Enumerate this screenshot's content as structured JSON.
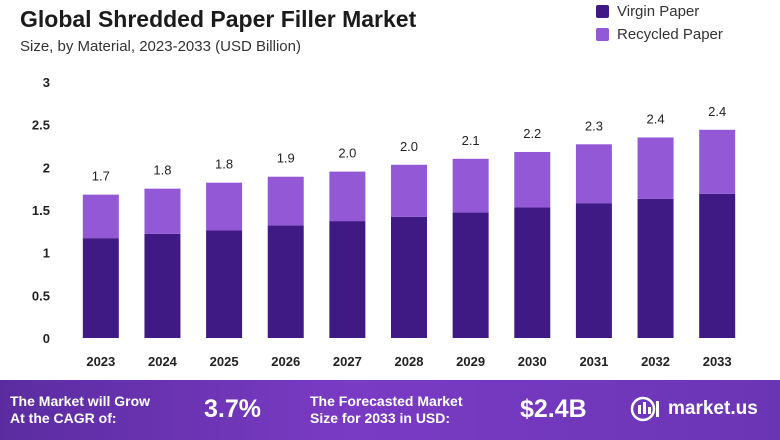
{
  "title": "Global Shredded Paper Filler Market",
  "subtitle": "Size, by Material, 2023-2033 (USD Billion)",
  "legend": [
    {
      "label": "Virgin Paper",
      "color": "#3f1a84"
    },
    {
      "label": "Recycled Paper",
      "color": "#9258d6"
    }
  ],
  "chart_data": {
    "type": "bar",
    "stacked": true,
    "categories": [
      "2023",
      "2024",
      "2025",
      "2026",
      "2027",
      "2028",
      "2029",
      "2030",
      "2031",
      "2032",
      "2033"
    ],
    "series": [
      {
        "name": "Virgin Paper",
        "color": "#3f1a84",
        "values": [
          1.17,
          1.22,
          1.26,
          1.32,
          1.37,
          1.42,
          1.47,
          1.53,
          1.58,
          1.63,
          1.69
        ]
      },
      {
        "name": "Recycled Paper",
        "color": "#9258d6",
        "values": [
          0.51,
          0.53,
          0.56,
          0.57,
          0.58,
          0.61,
          0.63,
          0.65,
          0.69,
          0.72,
          0.75
        ]
      }
    ],
    "totals_labels": [
      "1.7",
      "1.8",
      "1.8",
      "1.9",
      "2.0",
      "2.0",
      "2.1",
      "2.2",
      "2.3",
      "2.4",
      "2.4"
    ],
    "yticks": [
      "0",
      "0.5",
      "1",
      "1.5",
      "2",
      "2.5",
      "3"
    ],
    "ylim": [
      0,
      3
    ],
    "grid": false,
    "legend_position": "top-right"
  },
  "footer": {
    "cagr_text_line1": "The Market will Grow",
    "cagr_text_line2": "At the CAGR of:",
    "cagr_value": "3.7%",
    "forecast_text_line1": "The Forecasted Market",
    "forecast_text_line2": "Size for 2033 in USD:",
    "forecast_value": "$2.4B",
    "brand": "market.us"
  }
}
